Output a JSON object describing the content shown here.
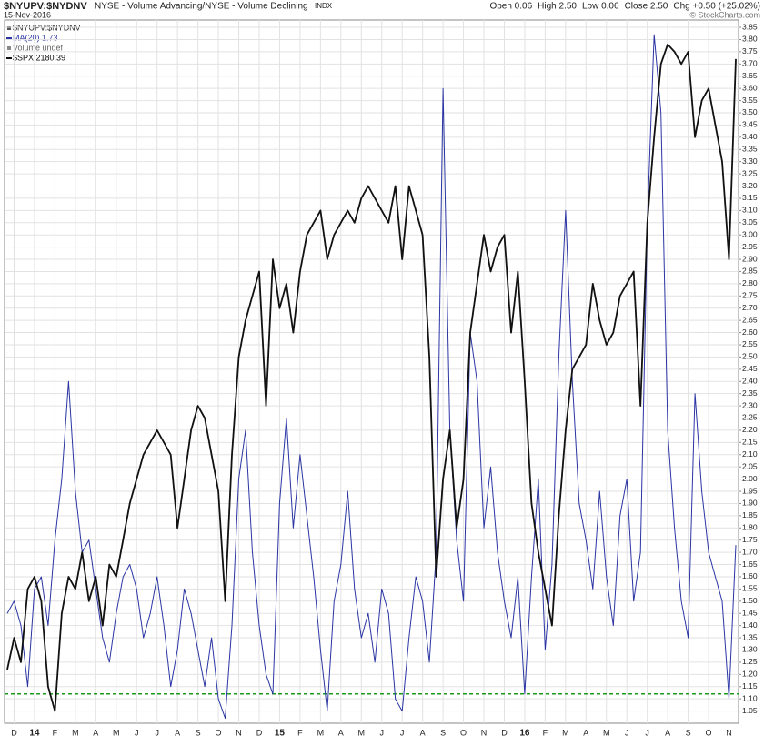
{
  "chart_data": {
    "type": "line",
    "title": "$NYUPV:$NYDNV",
    "subtitle": "NYSE - Volume Advancing/NYSE - Volume Declining",
    "exchange": "INDX",
    "date": "15-Nov-2016",
    "quote": [
      "Open 0.06",
      "High 2.50",
      "Low 0.06",
      "Close 2.50",
      "Chg +0.50 (+25.02%)"
    ],
    "credit": "© StockCharts.com",
    "legend_header": "$NYUPV:$NYDNV",
    "legend_note": "Volume undef",
    "categories": [
      null,
      "D",
      null,
      null,
      "14",
      null,
      null,
      "F",
      null,
      null,
      "M",
      null,
      null,
      "A",
      null,
      null,
      "M",
      null,
      null,
      "J",
      null,
      null,
      "J",
      null,
      null,
      "A",
      null,
      null,
      "S",
      null,
      null,
      "O",
      null,
      null,
      "N",
      null,
      null,
      "D",
      null,
      null,
      "15",
      null,
      null,
      "F",
      null,
      null,
      "M",
      null,
      null,
      "A",
      null,
      null,
      "M",
      null,
      null,
      "J",
      null,
      null,
      "J",
      null,
      null,
      "A",
      null,
      null,
      "S",
      null,
      null,
      "O",
      null,
      null,
      "N",
      null,
      null,
      "D",
      null,
      null,
      "16",
      null,
      null,
      "F",
      null,
      null,
      "M",
      null,
      null,
      "A",
      null,
      null,
      "M",
      null,
      null,
      "J",
      null,
      null,
      "J",
      null,
      null,
      "A",
      null,
      null,
      "S",
      null,
      null,
      "O",
      null,
      null,
      "N",
      null
    ],
    "series": [
      {
        "name": "MA(20) 1.73",
        "color": "#2a35a3",
        "width": 1,
        "values": [
          1.45,
          1.5,
          1.4,
          1.15,
          1.55,
          1.6,
          1.4,
          1.75,
          2.0,
          2.4,
          1.95,
          1.7,
          1.75,
          1.55,
          1.35,
          1.25,
          1.45,
          1.6,
          1.65,
          1.55,
          1.35,
          1.45,
          1.6,
          1.4,
          1.15,
          1.3,
          1.55,
          1.45,
          1.3,
          1.15,
          1.35,
          1.1,
          1.02,
          1.4,
          2.0,
          2.2,
          1.7,
          1.4,
          1.2,
          1.12,
          1.9,
          2.25,
          1.8,
          2.1,
          1.85,
          1.6,
          1.3,
          1.05,
          1.5,
          1.65,
          1.95,
          1.55,
          1.35,
          1.45,
          1.25,
          1.55,
          1.45,
          1.1,
          1.05,
          1.35,
          1.6,
          1.5,
          1.25,
          1.7,
          3.6,
          2.2,
          1.75,
          1.5,
          2.6,
          2.4,
          1.8,
          2.05,
          1.7,
          1.5,
          1.35,
          1.6,
          1.12,
          1.6,
          2.0,
          1.3,
          1.65,
          2.5,
          3.1,
          2.4,
          1.9,
          1.75,
          1.55,
          1.95,
          1.6,
          1.4,
          1.85,
          2.0,
          1.5,
          1.7,
          3.05,
          3.82,
          3.5,
          2.2,
          1.8,
          1.5,
          1.35,
          2.35,
          1.95,
          1.7,
          1.6,
          1.5,
          1.1,
          1.73
        ]
      },
      {
        "name": "$SPX 2180.39",
        "color": "#111111",
        "width": 1.8,
        "values": [
          1.22,
          1.35,
          1.25,
          1.55,
          1.6,
          1.5,
          1.15,
          1.05,
          1.45,
          1.6,
          1.55,
          1.7,
          1.5,
          1.6,
          1.4,
          1.65,
          1.6,
          1.75,
          1.9,
          2.0,
          2.1,
          2.15,
          2.2,
          2.15,
          2.1,
          1.8,
          2.0,
          2.2,
          2.3,
          2.25,
          2.1,
          1.95,
          1.5,
          2.1,
          2.5,
          2.65,
          2.75,
          2.85,
          2.3,
          2.9,
          2.7,
          2.8,
          2.6,
          2.85,
          3.0,
          3.05,
          3.1,
          2.9,
          3.0,
          3.05,
          3.1,
          3.05,
          3.15,
          3.2,
          3.15,
          3.1,
          3.05,
          3.2,
          2.9,
          3.2,
          3.1,
          3.0,
          2.5,
          1.6,
          2.0,
          2.2,
          1.8,
          2.0,
          2.6,
          2.8,
          3.0,
          2.85,
          2.95,
          3.0,
          2.6,
          2.85,
          2.4,
          1.9,
          1.7,
          1.55,
          1.4,
          1.85,
          2.2,
          2.45,
          2.5,
          2.55,
          2.8,
          2.65,
          2.55,
          2.6,
          2.75,
          2.8,
          2.85,
          2.3,
          3.05,
          3.4,
          3.7,
          3.78,
          3.75,
          3.7,
          3.75,
          3.4,
          3.55,
          3.6,
          3.45,
          3.3,
          2.9,
          3.72
        ]
      }
    ],
    "hline": {
      "value": 1.12,
      "color": "#1a9a1a"
    },
    "ylim": [
      1.0,
      3.88
    ],
    "yticks": [
      1.05,
      {
        "value": 1.1,
        "label": "1.10"
      },
      1.15,
      {
        "value": 1.2,
        "label": "1.20"
      },
      1.25,
      {
        "value": 1.3,
        "label": "1.30"
      },
      1.35,
      {
        "value": 1.4,
        "label": "1.40"
      },
      1.45,
      {
        "value": 1.5,
        "label": "1.50"
      },
      1.55,
      {
        "value": 1.6,
        "label": "1.60"
      },
      1.65,
      {
        "value": 1.7,
        "label": "1.70"
      },
      1.75,
      {
        "value": 1.8,
        "label": "1.80"
      },
      1.85,
      {
        "value": 1.9,
        "label": "1.90"
      },
      1.95,
      {
        "value": 2,
        "label": "2.00"
      },
      2.05,
      {
        "value": 2.1,
        "label": "2.10"
      },
      2.15,
      {
        "value": 2.2,
        "label": "2.20"
      },
      2.25,
      {
        "value": 2.3,
        "label": "2.30"
      },
      2.35,
      {
        "value": 2.4,
        "label": "2.40"
      },
      2.45,
      {
        "value": 2.5,
        "label": "2.50"
      },
      2.55,
      {
        "value": 2.6,
        "label": "2.60"
      },
      2.65,
      {
        "value": 2.7,
        "label": "2.70"
      },
      2.75,
      {
        "value": 2.8,
        "label": "2.80"
      },
      2.85,
      {
        "value": 2.9,
        "label": "2.90"
      },
      2.95,
      {
        "value": 3,
        "label": "3.00"
      },
      3.05,
      {
        "value": 3.1,
        "label": "3.10"
      },
      3.15,
      {
        "value": 3.2,
        "label": "3.20"
      },
      3.25,
      {
        "value": 3.3,
        "label": "3.30"
      },
      3.35,
      {
        "value": 3.4,
        "label": "3.40"
      },
      3.45,
      {
        "value": 3.5,
        "label": "3.50"
      },
      3.55,
      {
        "value": 3.6,
        "label": "3.60"
      },
      3.65,
      {
        "value": 3.7,
        "label": "3.70"
      },
      3.75,
      {
        "value": 3.8,
        "label": "3.80"
      },
      3.85
    ],
    "grid": true
  }
}
